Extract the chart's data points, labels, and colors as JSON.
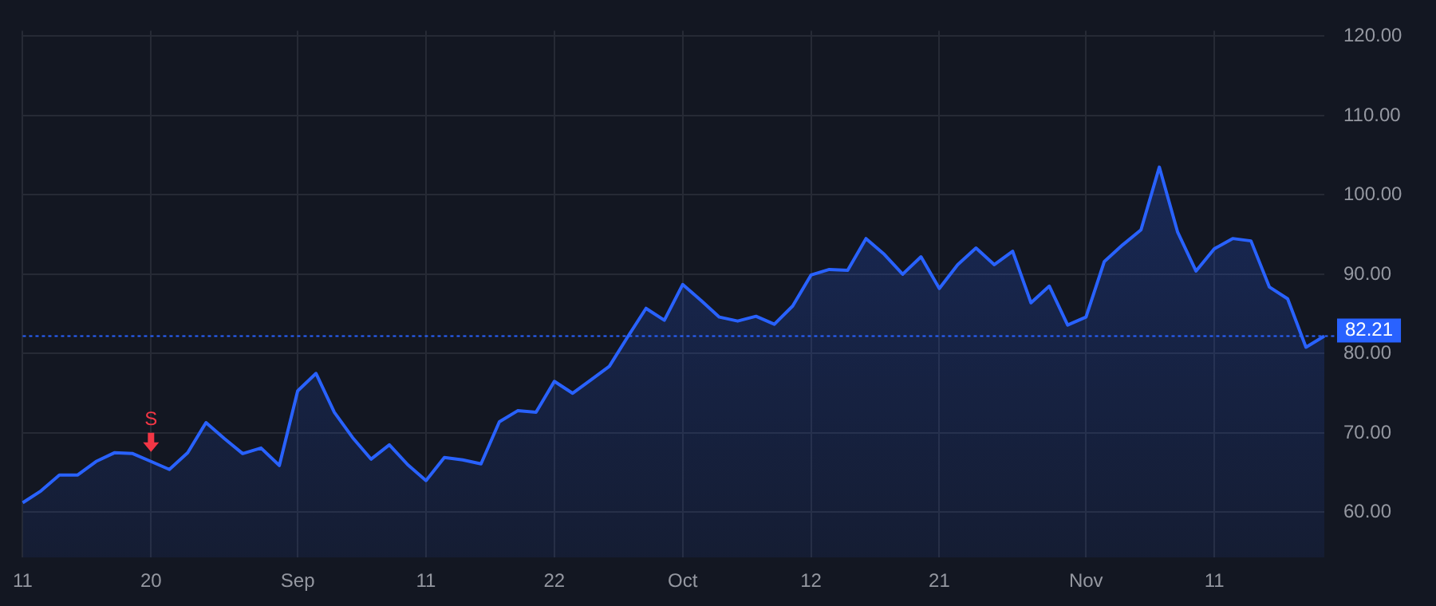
{
  "chart_data": {
    "type": "area",
    "categories": [
      "11",
      null,
      null,
      null,
      null,
      null,
      null,
      "20",
      null,
      null,
      null,
      null,
      null,
      null,
      null,
      "Sep",
      null,
      null,
      null,
      null,
      null,
      null,
      "11",
      null,
      null,
      null,
      null,
      null,
      null,
      "22",
      null,
      null,
      null,
      null,
      null,
      null,
      "Oct",
      null,
      null,
      null,
      null,
      null,
      null,
      "12",
      null,
      null,
      null,
      null,
      null,
      null,
      "21",
      null,
      null,
      null,
      null,
      null,
      null,
      null,
      "Nov",
      null,
      null,
      null,
      null,
      null,
      null,
      "11",
      null,
      null,
      null,
      null,
      null,
      null
    ],
    "series": [
      {
        "color": "#2962ff",
        "values": [
          61.2,
          62.7,
          64.7,
          64.7,
          66.4,
          67.5,
          67.4,
          66.4,
          65.4,
          67.5,
          71.3,
          69.3,
          67.4,
          68.1,
          65.9,
          75.3,
          77.5,
          72.6,
          69.4,
          66.7,
          68.5,
          66.0,
          64.0,
          66.9,
          66.6,
          66.1,
          71.4,
          72.8,
          72.6,
          76.5,
          75.0,
          76.7,
          78.4,
          82.1,
          85.7,
          84.2,
          88.7,
          86.7,
          84.6,
          84.1,
          84.7,
          83.7,
          86.0,
          89.9,
          90.6,
          90.5,
          94.5,
          92.5,
          90.0,
          92.2,
          88.2,
          91.2,
          93.3,
          91.2,
          92.9,
          86.4,
          88.5,
          83.6,
          84.6,
          91.6,
          93.7,
          95.6,
          103.5,
          95.3,
          90.4,
          93.2,
          94.5,
          94.2,
          88.4,
          86.9,
          80.8,
          82.2
        ]
      }
    ],
    "ylim": [
      54.3,
      120.7
    ],
    "yticks": [
      {
        "value": 60,
        "label": "60.00"
      },
      {
        "value": 70,
        "label": "70.00"
      },
      {
        "value": 80,
        "label": "80.00"
      },
      {
        "value": 90,
        "label": "90.00"
      },
      {
        "value": 100,
        "label": "100.00"
      },
      {
        "value": 110,
        "label": "110.00"
      },
      {
        "value": 120,
        "label": "120.00"
      }
    ],
    "ref_lines": [
      {
        "axis": "y",
        "value": 82.21,
        "label": "82.21",
        "color": "#2962ff",
        "line_style": "dotted"
      }
    ],
    "annotations": [
      {
        "text": "S",
        "x": "20",
        "y": 66.4
      }
    ],
    "grid": true,
    "legend": false,
    "marker": "none",
    "line_style": "solid"
  }
}
